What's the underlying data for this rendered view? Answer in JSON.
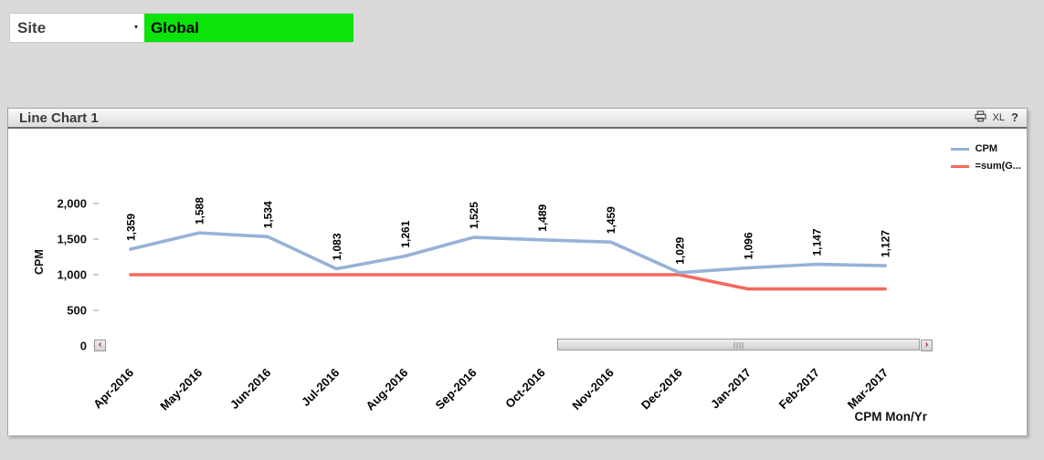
{
  "site_selector": {
    "label": "Site",
    "caret": "▾",
    "selected_value": "Global",
    "selected_color": "#0be30b"
  },
  "window": {
    "title": "Line Chart 1",
    "icons": {
      "print": "print-icon",
      "excel_label": "XL",
      "help_label": "?"
    }
  },
  "scrollbar": {
    "left_arrow": "‹",
    "right_arrow": "›"
  },
  "chart_data": {
    "type": "line",
    "categories": [
      "Apr-2016",
      "May-2016",
      "Jun-2016",
      "Jul-2016",
      "Aug-2016",
      "Sep-2016",
      "Oct-2016",
      "Nov-2016",
      "Dec-2016",
      "Jan-2017",
      "Feb-2017",
      "Mar-2017"
    ],
    "series": [
      {
        "name": "=sum(G...",
        "color": "#f4695e",
        "values": [
          1000,
          1000,
          1000,
          1000,
          1000,
          1000,
          1000,
          1000,
          1000,
          800,
          800,
          800
        ],
        "labels": null
      },
      {
        "name": "CPM",
        "color": "#96b2d8",
        "values": [
          1359,
          1588,
          1534,
          1083,
          1261,
          1525,
          1489,
          1459,
          1029,
          1096,
          1147,
          1127
        ],
        "labels": [
          "1,359",
          "1,588",
          "1,534",
          "1,083",
          "1,261",
          "1,525",
          "1,489",
          "1,459",
          "1,029",
          "1,096",
          "1,147",
          "1,127"
        ]
      }
    ],
    "legend_items": [
      {
        "label": "CPM",
        "color": "#96b2d8"
      },
      {
        "label": "=sum(G...",
        "color": "#f4695e"
      }
    ],
    "ylabel": "CPM",
    "xlabel": "CPM Mon/Yr",
    "ylim": [
      0,
      2000
    ],
    "ytick_values": [
      0,
      500,
      1000,
      1500,
      2000
    ],
    "ytick_labels": [
      "0",
      "500",
      "1,000",
      "1,500",
      "2,000"
    ],
    "grid": false,
    "legend_position": "top-right"
  }
}
